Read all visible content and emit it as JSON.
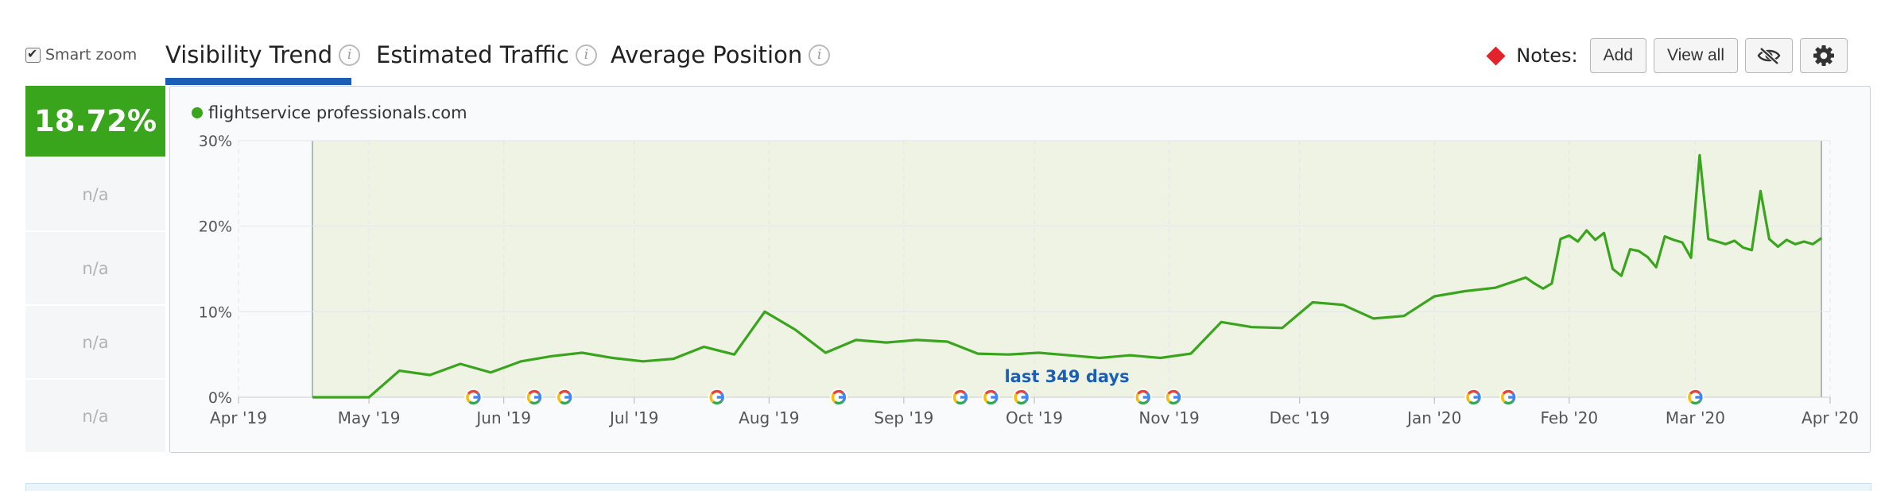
{
  "header": {
    "smart_zoom_label": "Smart zoom",
    "tabs": [
      {
        "label": "Visibility Trend",
        "active": true
      },
      {
        "label": "Estimated Traffic",
        "active": false
      },
      {
        "label": "Average Position",
        "active": false
      }
    ],
    "notes_label": "Notes:",
    "add_label": "Add",
    "view_all_label": "View all"
  },
  "scores": {
    "main": "18.72%",
    "rows": [
      "n/a",
      "n/a",
      "n/a",
      "n/a"
    ]
  },
  "colors": {
    "series": "#39a51d",
    "tab_active": "#1b5eb5",
    "note_marker": "#e3232b"
  },
  "chart_data": {
    "type": "line",
    "title": "",
    "xlabel": "",
    "ylabel": "",
    "ylim": [
      0,
      30
    ],
    "y_ticks": [
      "0%",
      "10%",
      "20%",
      "30%"
    ],
    "x_ticks": [
      "Apr '19",
      "May '19",
      "Jun '19",
      "Jul '19",
      "Aug '19",
      "Sep '19",
      "Oct '19",
      "Nov '19",
      "Dec '19",
      "Jan '20",
      "Feb '20",
      "Mar '20",
      "Apr '20"
    ],
    "x_range": [
      "2019-04-01",
      "2020-04-01"
    ],
    "annotation": "last 349 days",
    "google_update_markers": [
      "2019-05-25",
      "2019-06-08",
      "2019-06-15",
      "2019-07-20",
      "2019-08-17",
      "2019-09-14",
      "2019-09-21",
      "2019-09-28",
      "2019-10-26",
      "2019-11-02",
      "2020-01-10",
      "2020-01-18",
      "2020-03-01"
    ],
    "series": [
      {
        "name": "flightservice professionals.com",
        "x": [
          "2019-04-18",
          "2019-05-01",
          "2019-05-08",
          "2019-05-15",
          "2019-05-22",
          "2019-05-29",
          "2019-06-05",
          "2019-06-12",
          "2019-06-19",
          "2019-06-26",
          "2019-07-03",
          "2019-07-10",
          "2019-07-17",
          "2019-07-24",
          "2019-07-31",
          "2019-08-07",
          "2019-08-14",
          "2019-08-21",
          "2019-08-28",
          "2019-09-04",
          "2019-09-11",
          "2019-09-18",
          "2019-09-25",
          "2019-10-02",
          "2019-10-09",
          "2019-10-16",
          "2019-10-23",
          "2019-10-30",
          "2019-11-06",
          "2019-11-13",
          "2019-11-20",
          "2019-11-27",
          "2019-12-04",
          "2019-12-11",
          "2019-12-18",
          "2019-12-25",
          "2020-01-01",
          "2020-01-08",
          "2020-01-15",
          "2020-01-22",
          "2020-01-24",
          "2020-01-26",
          "2020-01-28",
          "2020-01-30",
          "2020-02-01",
          "2020-02-03",
          "2020-02-05",
          "2020-02-07",
          "2020-02-09",
          "2020-02-11",
          "2020-02-13",
          "2020-02-15",
          "2020-02-17",
          "2020-02-19",
          "2020-02-21",
          "2020-02-23",
          "2020-02-25",
          "2020-02-27",
          "2020-02-29",
          "2020-03-02",
          "2020-03-04",
          "2020-03-06",
          "2020-03-08",
          "2020-03-10",
          "2020-03-12",
          "2020-03-14",
          "2020-03-16",
          "2020-03-18",
          "2020-03-20",
          "2020-03-22",
          "2020-03-24",
          "2020-03-26",
          "2020-03-28",
          "2020-03-30"
        ],
        "values": [
          0,
          0,
          3.1,
          2.6,
          3.9,
          2.9,
          4.2,
          4.8,
          5.2,
          4.6,
          4.2,
          4.5,
          5.9,
          5.0,
          10.0,
          7.9,
          5.2,
          6.7,
          6.4,
          6.7,
          6.5,
          5.1,
          5.0,
          5.2,
          4.9,
          4.6,
          4.9,
          4.6,
          5.1,
          8.8,
          8.2,
          8.1,
          11.1,
          10.8,
          9.2,
          9.5,
          11.8,
          12.4,
          12.8,
          14.0,
          13.3,
          12.7,
          13.3,
          18.5,
          18.9,
          18.2,
          19.5,
          18.4,
          19.2,
          15.0,
          14.2,
          17.3,
          17.1,
          16.4,
          15.2,
          18.8,
          18.4,
          18.1,
          16.3,
          28.3,
          18.5,
          18.2,
          17.9,
          18.3,
          17.5,
          17.2,
          24.1,
          18.5,
          17.6,
          18.4,
          17.9,
          18.2,
          17.9,
          18.6
        ]
      }
    ]
  }
}
